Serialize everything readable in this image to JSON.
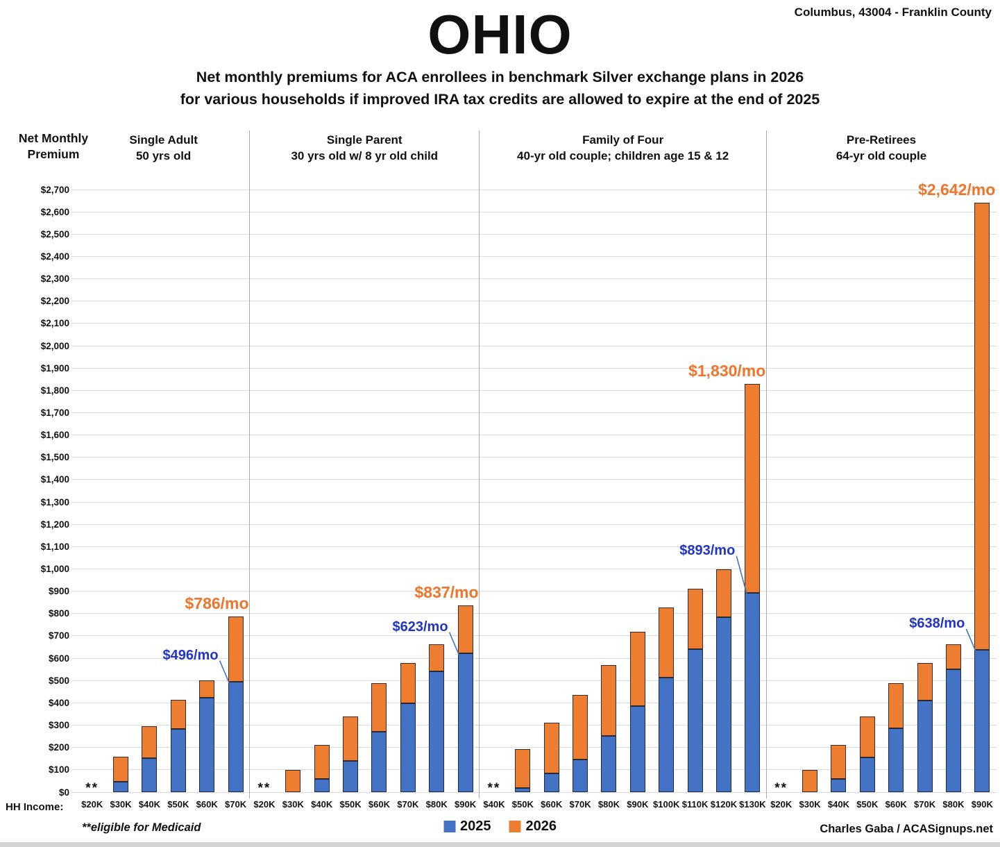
{
  "header": {
    "location": "Columbus, 43004 - Franklin County",
    "title": "OHIO",
    "subtitle_line1": "Net monthly premiums for ACA enrollees in benchmark Silver exchange plans in 2026",
    "subtitle_line2": "for various households if improved IRA tax credits are allowed to expire at the end of 2025"
  },
  "axis": {
    "title_line1": "Net Monthly",
    "title_line2": "Premium",
    "hh_income_label": "HH Income:",
    "medicaid_marker": "**"
  },
  "legend": [
    {
      "label": "2025",
      "color": "#4472C4"
    },
    {
      "label": "2026",
      "color": "#ED7D31"
    }
  ],
  "footer": {
    "medicaid_note": "**eligible for Medicaid",
    "credit": "Charles Gaba / ACASignups.net"
  },
  "colors": {
    "bar_2025": "#4472C4",
    "bar_2026": "#ED7D31",
    "callout_2025": "#2134C8",
    "callout_2026": "#F0742A",
    "leader_line": "#4472C4",
    "gridline": "#dcdcdc",
    "divider": "#a8a8a8"
  },
  "chart_data": {
    "type": "bar",
    "stacked": true,
    "series_names": [
      "2025",
      "2026"
    ],
    "ylabel": "Net Monthly Premium",
    "xlabel": "HH Income",
    "ylim": [
      0,
      2700
    ],
    "ytick_step": 100,
    "ytick_format": "$#,###",
    "grid": true,
    "note": "** = eligible for Medicaid (no bar shown)",
    "groups": [
      {
        "title": [
          "Single Adult",
          "50 yrs old"
        ],
        "categories": [
          "$20K",
          "$30K",
          "$40K",
          "$50K",
          "$60K",
          "$70K"
        ],
        "values_2025": [
          null,
          48,
          152,
          283,
          422,
          496
        ],
        "values_2026": [
          null,
          160,
          295,
          415,
          500,
          786
        ],
        "callout_2025": "$496/mo",
        "callout_2026": "$786/mo"
      },
      {
        "title": [
          "Single Parent",
          "30 yrs old w/ 8 yr old child"
        ],
        "categories": [
          "$20K",
          "$30K",
          "$40K",
          "$50K",
          "$60K",
          "$70K",
          "$80K",
          "$90K"
        ],
        "values_2025": [
          null,
          0,
          58,
          140,
          272,
          398,
          540,
          623
        ],
        "values_2026": [
          null,
          100,
          212,
          340,
          488,
          578,
          662,
          837
        ],
        "callout_2025": "$623/mo",
        "callout_2026": "$837/mo"
      },
      {
        "title": [
          "Family of Four",
          "40-yr old couple; children age 15 & 12"
        ],
        "categories": [
          "$40K",
          "$50K",
          "$60K",
          "$70K",
          "$80K",
          "$90K",
          "$100K",
          "$110K",
          "$120K",
          "$130K"
        ],
        "values_2025": [
          null,
          18,
          83,
          146,
          253,
          385,
          513,
          640,
          783,
          893
        ],
        "values_2026": [
          null,
          192,
          310,
          437,
          570,
          718,
          828,
          912,
          997,
          1830
        ],
        "callout_2025": "$893/mo",
        "callout_2026": "$1,830/mo"
      },
      {
        "title": [
          "Pre-Retirees",
          "64-yr old couple"
        ],
        "categories": [
          "$20K",
          "$30K",
          "$40K",
          "$50K",
          "$60K",
          "$70K",
          "$80K",
          "$90K"
        ],
        "values_2025": [
          null,
          0,
          58,
          155,
          285,
          410,
          550,
          638
        ],
        "values_2026": [
          null,
          100,
          212,
          340,
          488,
          578,
          662,
          2642
        ],
        "callout_2025": "$638/mo",
        "callout_2026": "$2,642/mo"
      }
    ]
  }
}
